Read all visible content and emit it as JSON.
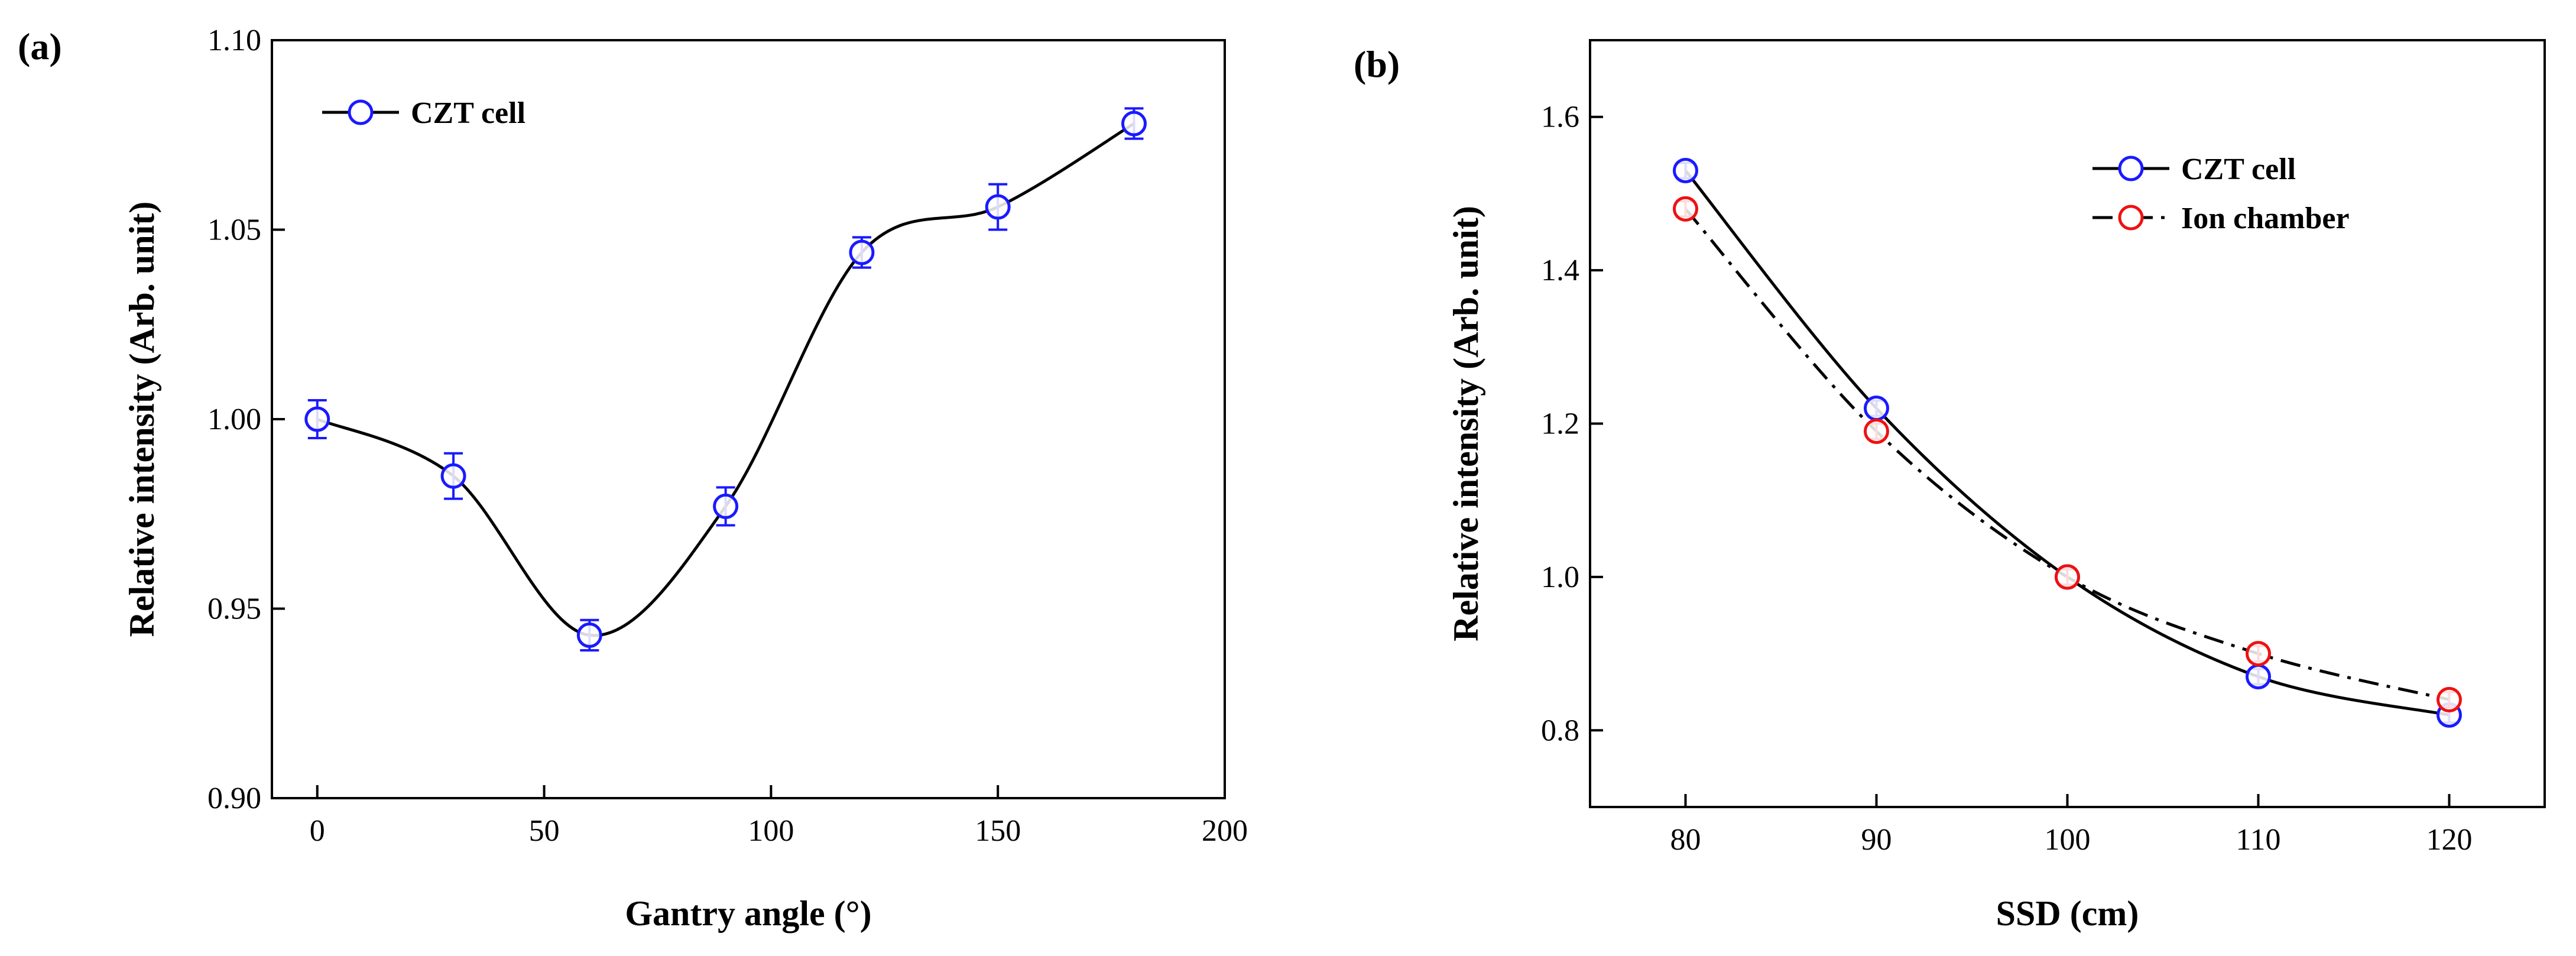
{
  "chart_data": [
    {
      "type": "line",
      "panel_label": "(a)",
      "xlabel": "Gantry angle (°)",
      "ylabel": "Relative intensity (Arb. unit)",
      "xlim": [
        -10,
        200
      ],
      "ylim": [
        0.9,
        1.1
      ],
      "xticks": [
        0,
        50,
        100,
        150,
        200
      ],
      "yticks": [
        0.9,
        0.95,
        1.0,
        1.05,
        1.1
      ],
      "xtick_labels": [
        "0",
        "50",
        "100",
        "150",
        "200"
      ],
      "ytick_labels": [
        "0.90",
        "0.95",
        "1.00",
        "1.05",
        "1.10"
      ],
      "legend_position": "top-left",
      "series": [
        {
          "name": "CZT cell",
          "color": "#1a1aff",
          "line_color": "#000000",
          "line_style": "solid",
          "x": [
            0,
            30,
            60,
            90,
            120,
            150,
            180
          ],
          "y": [
            1.0,
            0.985,
            0.943,
            0.977,
            1.044,
            1.056,
            1.078
          ],
          "yerr": [
            0.005,
            0.006,
            0.004,
            0.005,
            0.004,
            0.006,
            0.004
          ]
        }
      ]
    },
    {
      "type": "line",
      "panel_label": "(b)",
      "xlabel": "SSD (cm)",
      "ylabel": "Relative intensity (Arb. unit)",
      "xlim": [
        75,
        125
      ],
      "ylim": [
        0.7,
        1.7
      ],
      "xticks": [
        80,
        90,
        100,
        110,
        120
      ],
      "yticks": [
        0.8,
        1.0,
        1.2,
        1.4,
        1.6
      ],
      "xtick_labels": [
        "80",
        "90",
        "100",
        "110",
        "120"
      ],
      "ytick_labels": [
        "0.8",
        "1.0",
        "1.2",
        "1.4",
        "1.6"
      ],
      "legend_position": "top-right",
      "series": [
        {
          "name": "CZT cell",
          "color": "#1a1aff",
          "line_color": "#000000",
          "line_style": "solid",
          "x": [
            80,
            90,
            100,
            110,
            120
          ],
          "y": [
            1.53,
            1.22,
            1.0,
            0.87,
            0.82
          ],
          "yerr": [
            0.01,
            0.01,
            0.01,
            0.01,
            0.01
          ]
        },
        {
          "name": "Ion chamber",
          "color": "#ee1111",
          "line_color": "#000000",
          "line_style": "dashdot",
          "x": [
            80,
            90,
            100,
            110,
            120
          ],
          "y": [
            1.48,
            1.19,
            1.0,
            0.9,
            0.84
          ],
          "yerr": [
            0.01,
            0.01,
            0.01,
            0.01,
            0.01
          ]
        }
      ]
    }
  ]
}
